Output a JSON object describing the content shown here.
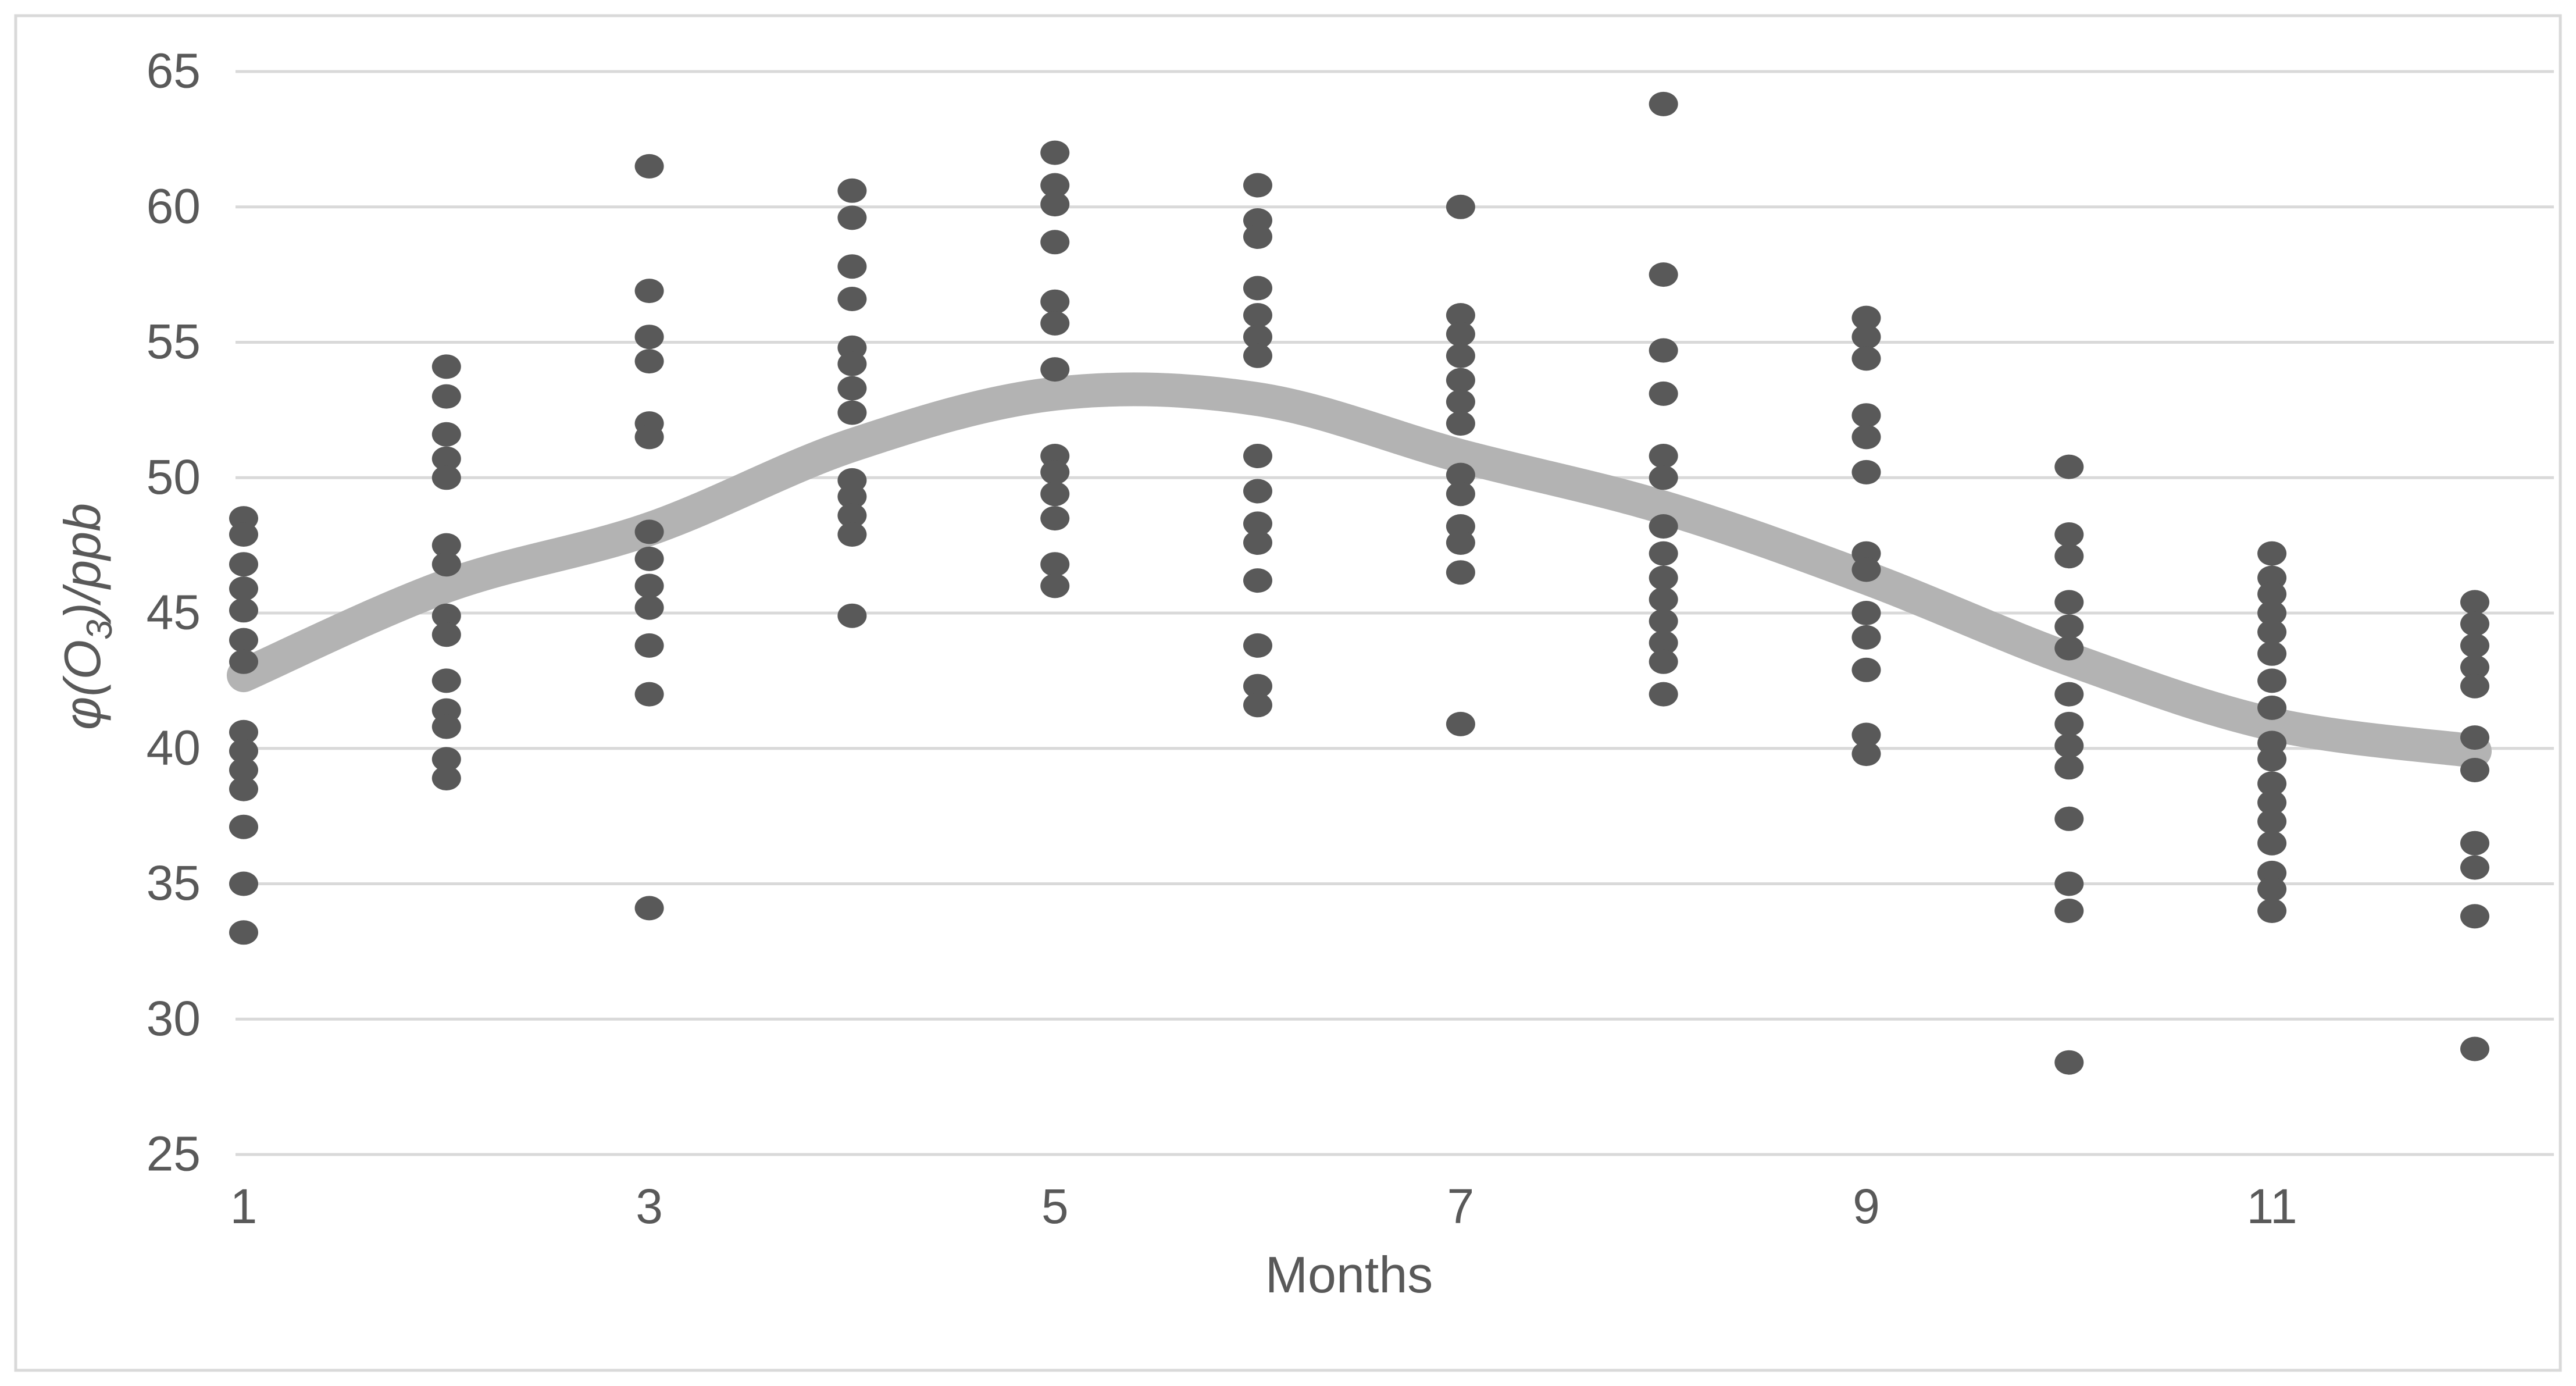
{
  "chart_data": {
    "type": "scatter",
    "title": "",
    "xlabel": "Months",
    "ylabel": "φ(O₃)/ppb",
    "ylabel_parts": {
      "pre": "φ(O",
      "sub": "3",
      "post": ")/ppb"
    },
    "x_ticks": [
      1,
      3,
      5,
      7,
      9,
      11
    ],
    "y_ticks": [
      25,
      30,
      35,
      40,
      45,
      50,
      55,
      60,
      65
    ],
    "xlim": [
      0.96,
      12.39
    ],
    "ylim": [
      25,
      65
    ],
    "grid": "horizontal-only",
    "legend": "none",
    "colors": {
      "marker": "#595959",
      "trend_line": "#b3b3b3",
      "gridline": "#d9d9d9",
      "axis_text": "#595959",
      "canvas_border": "#d9d9d9",
      "background": "#ffffff"
    },
    "series": [
      {
        "name": "monthly-ozone-observations",
        "type": "scatter",
        "points": [
          {
            "month": 1,
            "values": [
              48.5,
              47.9,
              46.8,
              45.9,
              45.1,
              44.0,
              43.2,
              40.6,
              39.9,
              39.2,
              38.5,
              37.1,
              35.0,
              33.2
            ]
          },
          {
            "month": 2,
            "values": [
              54.1,
              53.0,
              51.6,
              50.7,
              50.0,
              47.5,
              46.8,
              44.9,
              44.2,
              42.5,
              41.4,
              40.8,
              39.6,
              38.9
            ]
          },
          {
            "month": 3,
            "values": [
              61.5,
              56.9,
              55.2,
              54.3,
              52.0,
              51.5,
              48.0,
              47.0,
              46.0,
              45.2,
              43.8,
              42.0,
              34.1
            ]
          },
          {
            "month": 4,
            "values": [
              60.6,
              59.6,
              57.8,
              56.6,
              54.8,
              54.2,
              53.3,
              52.4,
              49.9,
              49.3,
              48.6,
              47.9,
              44.9
            ]
          },
          {
            "month": 5,
            "values": [
              62.0,
              60.8,
              60.1,
              58.7,
              56.5,
              55.7,
              54.0,
              50.8,
              50.2,
              49.4,
              48.5,
              46.8,
              46.0
            ]
          },
          {
            "month": 6,
            "values": [
              60.8,
              59.5,
              58.9,
              57.0,
              56.0,
              55.2,
              54.5,
              50.8,
              49.5,
              48.3,
              47.6,
              46.2,
              43.8,
              42.3,
              41.6
            ]
          },
          {
            "month": 7,
            "values": [
              60.0,
              56.0,
              55.3,
              54.5,
              53.6,
              52.8,
              52.0,
              50.1,
              49.4,
              48.2,
              47.6,
              46.5,
              40.9
            ]
          },
          {
            "month": 8,
            "values": [
              63.8,
              57.5,
              54.7,
              53.1,
              50.8,
              50.0,
              48.2,
              47.2,
              46.3,
              45.5,
              44.7,
              43.9,
              43.2,
              42.0
            ]
          },
          {
            "month": 9,
            "values": [
              55.9,
              55.2,
              54.4,
              52.3,
              51.5,
              50.2,
              47.2,
              46.6,
              45.0,
              44.1,
              42.9,
              40.5,
              39.8
            ]
          },
          {
            "month": 10,
            "values": [
              50.4,
              47.9,
              47.1,
              45.4,
              44.5,
              43.7,
              42.0,
              40.9,
              40.1,
              39.3,
              37.4,
              35.0,
              34.0,
              28.4
            ]
          },
          {
            "month": 11,
            "values": [
              47.2,
              46.3,
              45.7,
              45.0,
              44.3,
              43.5,
              42.5,
              41.5,
              40.2,
              39.6,
              38.7,
              38.0,
              37.3,
              36.5,
              35.4,
              34.8,
              34.0
            ]
          },
          {
            "month": 12,
            "values": [
              45.4,
              44.6,
              43.8,
              43.0,
              42.3,
              40.4,
              39.2,
              36.5,
              35.6,
              33.8,
              28.9
            ]
          }
        ]
      },
      {
        "name": "smoothed-trend-line",
        "type": "line",
        "x": [
          1,
          2,
          3,
          4,
          5,
          6,
          7,
          8,
          9,
          10,
          11,
          12
        ],
        "y": [
          42.7,
          46.0,
          48.1,
          51.2,
          53.1,
          52.9,
          50.8,
          48.9,
          46.3,
          43.3,
          40.9,
          39.9
        ]
      }
    ]
  }
}
